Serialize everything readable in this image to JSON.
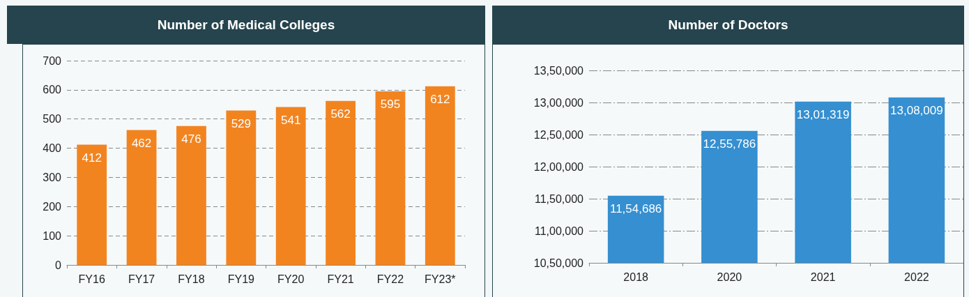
{
  "chart_data": [
    {
      "type": "bar",
      "title": "Number of Medical Colleges",
      "categories": [
        "FY16",
        "FY17",
        "FY18",
        "FY19",
        "FY20",
        "FY21",
        "FY22",
        "FY23*"
      ],
      "values": [
        412,
        462,
        476,
        529,
        541,
        562,
        595,
        612
      ],
      "color": "#f28420",
      "ylim": [
        0,
        700
      ],
      "yticks": [
        0,
        100,
        200,
        300,
        400,
        500,
        600,
        700
      ],
      "grid": "y",
      "data_labels": true
    },
    {
      "type": "bar",
      "title": "Number of Doctors",
      "categories": [
        "2018",
        "2020",
        "2021",
        "2022"
      ],
      "values": [
        1154686,
        1255786,
        1301319,
        1308009
      ],
      "value_labels": [
        "11,54,686",
        "12,55,786",
        "13,01,319",
        "13,08,009"
      ],
      "color": "#358fd0",
      "ylim": [
        1050000,
        1350000
      ],
      "yticks": [
        {
          "value": 1050000,
          "label": "10,50,000"
        },
        {
          "value": 1100000,
          "label": "11,00,000"
        },
        {
          "value": 1150000,
          "label": "11,50,000"
        },
        {
          "value": 1200000,
          "label": "12,00,000"
        },
        {
          "value": 1250000,
          "label": "12,50,000"
        },
        {
          "value": 1300000,
          "label": "13,00,000"
        },
        {
          "value": 1350000,
          "label": "13,50,000"
        }
      ],
      "grid": "y"
    }
  ]
}
